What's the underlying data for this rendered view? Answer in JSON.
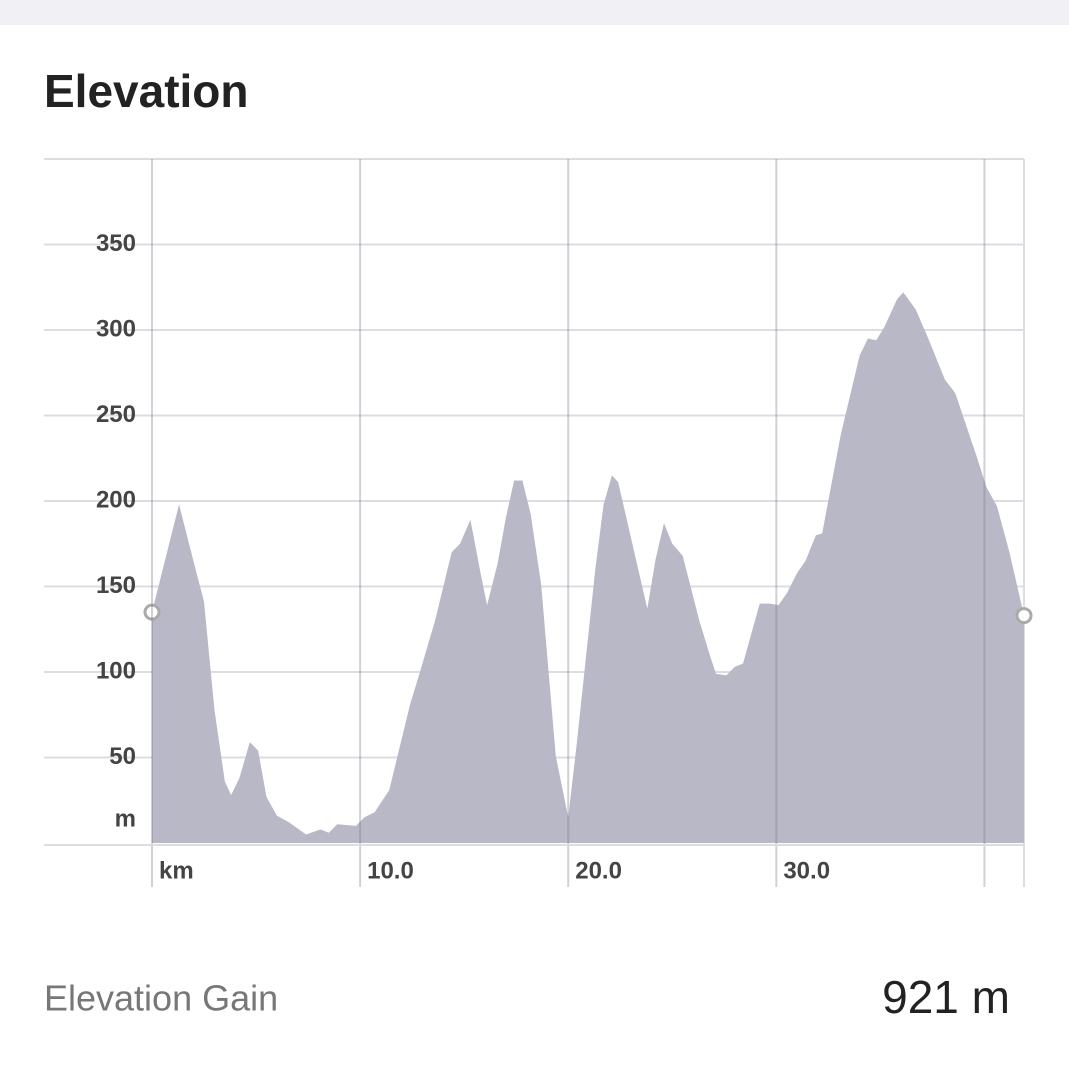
{
  "chart_data": {
    "type": "area",
    "title": "Elevation",
    "y_label": "m",
    "color": "#b9b8c6",
    "x": [
      0,
      1.3,
      1.8,
      2.5,
      3.0,
      3.5,
      3.8,
      4.2,
      4.7,
      5.1,
      5.5,
      6.0,
      6.6,
      7.4,
      8.1,
      8.5,
      8.9,
      9.8,
      10.2,
      10.7,
      11.4,
      12.4,
      12.9,
      13.6,
      14.4,
      14.8,
      15.3,
      15.8,
      16.1,
      16.6,
      17.0,
      17.4,
      17.8,
      18.2,
      18.7,
      19.4,
      20.0,
      20.4,
      21.3,
      21.7,
      22.1,
      22.4,
      23.1,
      23.8,
      24.2,
      24.6,
      25.0,
      25.5,
      26.3,
      26.8,
      27.1,
      27.6,
      28.0,
      28.4,
      29.2,
      29.7,
      30.1,
      30.5,
      31.0,
      31.4,
      31.9,
      32.2,
      33.1,
      34.0,
      34.4,
      34.8,
      35.2,
      35.8,
      36.1,
      36.7,
      37.3,
      38.1,
      38.6,
      39.6,
      40.1,
      40.6,
      41.2,
      41.9
    ],
    "values": [
      135,
      198,
      174,
      141,
      78,
      36,
      28,
      38,
      59,
      54,
      27,
      16,
      12,
      5,
      8,
      6,
      11,
      10,
      15,
      18,
      31,
      81,
      101,
      130,
      170,
      175,
      189,
      157,
      139,
      163,
      190,
      212,
      212,
      192,
      151,
      51,
      15,
      57,
      160,
      198,
      215,
      211,
      174,
      137,
      166,
      187,
      175,
      168,
      130,
      110,
      99,
      98,
      103,
      105,
      140,
      140,
      139,
      146,
      158,
      165,
      180,
      181,
      239,
      285,
      295,
      294,
      302,
      318,
      322,
      312,
      295,
      271,
      263,
      227,
      208,
      197,
      170,
      133
    ],
    "xlim": [
      0,
      41.9
    ],
    "ylim": [
      0,
      400
    ],
    "xticks": [
      {
        "value": 0,
        "label": "km"
      },
      {
        "value": 10,
        "label": "10.0"
      },
      {
        "value": 20,
        "label": "20.0"
      },
      {
        "value": 30,
        "label": "30.0"
      },
      {
        "value": 40,
        "label": null
      }
    ],
    "yticks": [
      50,
      100,
      150,
      200,
      250,
      300,
      350
    ],
    "grid": true
  },
  "stats": {
    "label": "Elevation Gain",
    "value": "921 m"
  }
}
